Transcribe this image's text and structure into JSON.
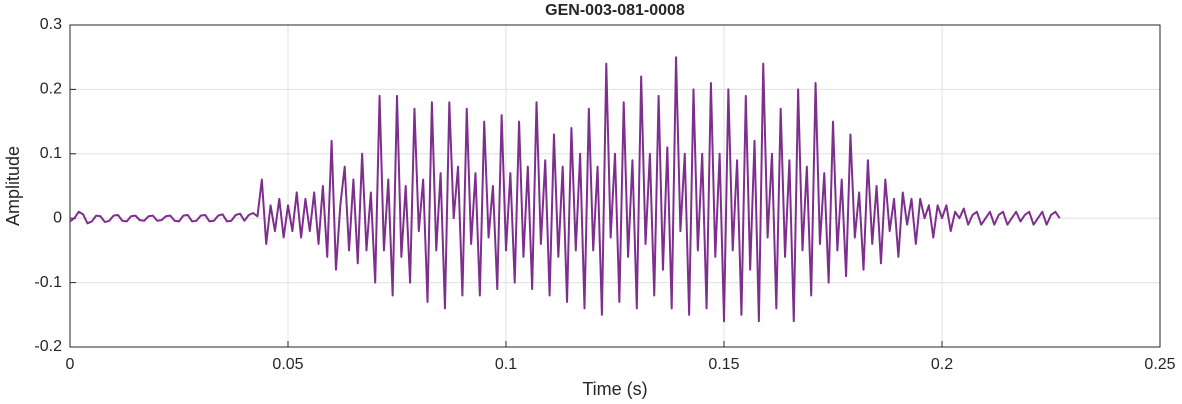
{
  "chart_data": {
    "type": "line",
    "title": "GEN-003-081-0008",
    "x_label": "Time (s)",
    "y_label": "Amplitude",
    "color": "#7e2f8e",
    "grid": true,
    "xlim": [
      0,
      0.25
    ],
    "xticks": [
      0,
      0.05,
      0.1,
      0.15,
      0.2,
      0.25
    ],
    "ylim": [
      -0.2,
      0.3
    ],
    "yticks": [
      -0.2,
      -0.1,
      0,
      0.1,
      0.2,
      0.3
    ],
    "x": [
      0,
      0.001,
      0.002,
      0.003,
      0.004,
      0.005,
      0.006,
      0.007,
      0.008,
      0.009,
      0.01,
      0.011,
      0.012,
      0.013,
      0.014,
      0.015,
      0.016,
      0.017,
      0.018,
      0.019,
      0.02,
      0.021,
      0.022,
      0.023,
      0.024,
      0.025,
      0.026,
      0.027,
      0.028,
      0.029,
      0.03,
      0.031,
      0.032,
      0.033,
      0.034,
      0.035,
      0.036,
      0.037,
      0.038,
      0.039,
      0.04,
      0.041,
      0.042,
      0.043,
      0.044,
      0.045,
      0.046,
      0.047,
      0.048,
      0.049,
      0.05,
      0.051,
      0.052,
      0.053,
      0.054,
      0.055,
      0.056,
      0.057,
      0.058,
      0.059,
      0.06,
      0.061,
      0.062,
      0.063,
      0.064,
      0.065,
      0.066,
      0.067,
      0.068,
      0.069,
      0.07,
      0.071,
      0.072,
      0.073,
      0.074,
      0.075,
      0.076,
      0.077,
      0.078,
      0.079,
      0.08,
      0.081,
      0.082,
      0.083,
      0.084,
      0.085,
      0.086,
      0.087,
      0.088,
      0.089,
      0.09,
      0.091,
      0.092,
      0.093,
      0.094,
      0.095,
      0.096,
      0.097,
      0.098,
      0.099,
      0.1,
      0.101,
      0.102,
      0.103,
      0.104,
      0.105,
      0.106,
      0.107,
      0.108,
      0.109,
      0.11,
      0.111,
      0.112,
      0.113,
      0.114,
      0.115,
      0.116,
      0.117,
      0.118,
      0.119,
      0.12,
      0.121,
      0.122,
      0.123,
      0.124,
      0.125,
      0.126,
      0.127,
      0.128,
      0.129,
      0.13,
      0.131,
      0.132,
      0.133,
      0.134,
      0.135,
      0.136,
      0.137,
      0.138,
      0.139,
      0.14,
      0.141,
      0.142,
      0.143,
      0.144,
      0.145,
      0.146,
      0.147,
      0.148,
      0.149,
      0.15,
      0.151,
      0.152,
      0.153,
      0.154,
      0.155,
      0.156,
      0.157,
      0.158,
      0.159,
      0.16,
      0.161,
      0.162,
      0.163,
      0.164,
      0.165,
      0.166,
      0.167,
      0.168,
      0.169,
      0.17,
      0.171,
      0.172,
      0.173,
      0.174,
      0.175,
      0.176,
      0.177,
      0.178,
      0.179,
      0.18,
      0.181,
      0.182,
      0.183,
      0.184,
      0.185,
      0.186,
      0.187,
      0.188,
      0.189,
      0.19,
      0.191,
      0.192,
      0.193,
      0.194,
      0.195,
      0.196,
      0.197,
      0.198,
      0.199,
      0.2,
      0.201,
      0.202,
      0.203,
      0.204,
      0.205,
      0.206,
      0.207,
      0.208,
      0.209,
      0.21,
      0.211,
      0.212,
      0.213,
      0.214,
      0.215,
      0.216,
      0.217,
      0.218,
      0.219,
      0.22,
      0.221,
      0.222,
      0.223,
      0.224,
      0.225,
      0.226,
      0.227
    ],
    "values": [
      -0.005,
      0,
      0.01,
      0.006,
      -0.008,
      -0.005,
      0.004,
      0.003,
      -0.006,
      -0.004,
      0.004,
      0.005,
      -0.004,
      -0.005,
      0.003,
      0.004,
      -0.003,
      -0.004,
      0.003,
      0.004,
      -0.004,
      -0.003,
      0.003,
      0.004,
      -0.004,
      -0.005,
      0.004,
      0.005,
      -0.005,
      -0.004,
      0.004,
      0.005,
      -0.005,
      -0.004,
      0.004,
      0.006,
      -0.005,
      -0.004,
      0.005,
      0.007,
      -0.004,
      0.005,
      0.008,
      0.003,
      0.06,
      -0.04,
      0.02,
      -0.02,
      0.03,
      -0.03,
      0.02,
      -0.02,
      0.04,
      -0.03,
      0.03,
      -0.02,
      0.04,
      -0.04,
      0.05,
      -0.06,
      0.12,
      -0.08,
      0.02,
      0.08,
      -0.05,
      0.06,
      -0.07,
      0.1,
      -0.05,
      0.04,
      -0.1,
      0.19,
      -0.05,
      0.06,
      -0.12,
      0.19,
      -0.06,
      0.05,
      -0.1,
      0.17,
      -0.02,
      0.06,
      -0.13,
      0.18,
      -0.05,
      0.07,
      -0.14,
      0.18,
      0,
      0.08,
      -0.12,
      0.17,
      -0.04,
      0.07,
      -0.12,
      0.15,
      -0.03,
      0.05,
      -0.11,
      0.16,
      -0.05,
      0.07,
      -0.1,
      0.15,
      -0.06,
      0.08,
      -0.11,
      0.18,
      -0.04,
      0.09,
      -0.12,
      0.13,
      -0.06,
      0.08,
      -0.13,
      0.14,
      -0.05,
      0.1,
      -0.14,
      0.17,
      -0.05,
      0.08,
      -0.15,
      0.24,
      -0.03,
      0.1,
      -0.13,
      0.18,
      -0.06,
      0.09,
      -0.14,
      0.22,
      -0.04,
      0.1,
      -0.12,
      0.19,
      -0.08,
      0.11,
      -0.14,
      0.25,
      -0.02,
      0.1,
      -0.15,
      0.2,
      -0.05,
      0.1,
      -0.14,
      0.21,
      -0.06,
      0.1,
      -0.16,
      0.2,
      -0.05,
      0.09,
      -0.15,
      0.19,
      -0.08,
      0.12,
      -0.16,
      0.24,
      -0.03,
      0.1,
      -0.14,
      0.17,
      -0.06,
      0.09,
      -0.16,
      0.2,
      -0.05,
      0.08,
      -0.12,
      0.21,
      -0.04,
      0.07,
      -0.1,
      0.15,
      -0.05,
      0.06,
      -0.09,
      0.13,
      -0.03,
      0.04,
      -0.08,
      0.09,
      -0.04,
      0.05,
      -0.07,
      0.06,
      -0.02,
      0.03,
      -0.06,
      0.04,
      -0.01,
      0.03,
      -0.04,
      0.03,
      0,
      0.02,
      -0.03,
      0.02,
      0,
      0.02,
      -0.02,
      0.01,
      0,
      0.015,
      -0.01,
      0.005,
      0.01,
      -0.01,
      0,
      0.01,
      -0.01,
      0.005,
      0.01,
      -0.01,
      0,
      0.01,
      -0.005,
      0.005,
      0.01,
      -0.01,
      0,
      0.01,
      -0.01,
      0.005,
      0.01,
      0
    ]
  }
}
